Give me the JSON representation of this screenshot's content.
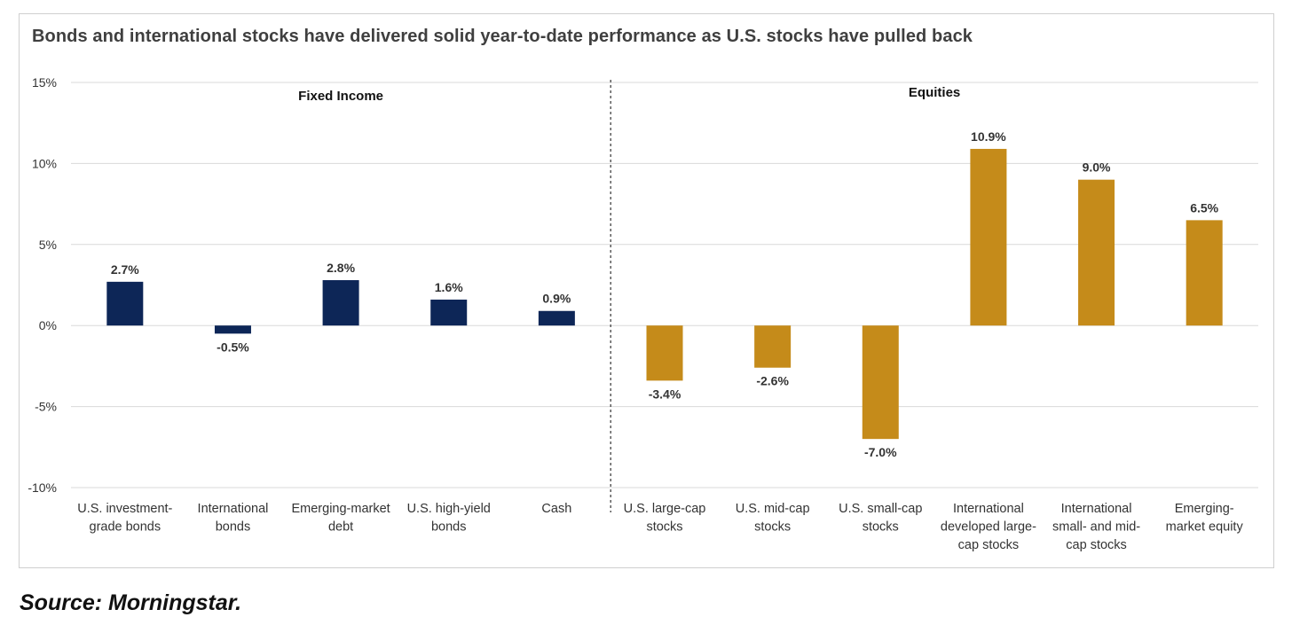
{
  "chart_data": {
    "type": "bar",
    "title": "Bonds and international  stocks have delivered solid year-to-date performance  as U.S. stocks have pulled back",
    "source": "Source: Morningstar.",
    "ylim": [
      -10,
      15
    ],
    "yticks": [
      {
        "value": 15,
        "label": "15%"
      },
      {
        "value": 10,
        "label": "10%"
      },
      {
        "value": 5,
        "label": "5%"
      },
      {
        "value": 0,
        "label": "0%"
      },
      {
        "value": -5,
        "label": "-5%"
      },
      {
        "value": -10,
        "label": "-10%"
      }
    ],
    "grid": true,
    "groups": [
      {
        "name": "Fixed Income",
        "color": "#0d2657"
      },
      {
        "name": "Equities",
        "color": "#c58b1a"
      }
    ],
    "categories": [
      {
        "label": [
          "U.S. investment-",
          "grade bonds"
        ],
        "value": 2.7,
        "value_label": "2.7%",
        "group": 0
      },
      {
        "label": [
          "International",
          "bonds"
        ],
        "value": -0.5,
        "value_label": "-0.5%",
        "group": 0
      },
      {
        "label": [
          "Emerging-market",
          "debt"
        ],
        "value": 2.8,
        "value_label": "2.8%",
        "group": 0
      },
      {
        "label": [
          "U.S. high-yield",
          "bonds"
        ],
        "value": 1.6,
        "value_label": "1.6%",
        "group": 0
      },
      {
        "label": [
          "Cash"
        ],
        "value": 0.9,
        "value_label": "0.9%",
        "group": 0
      },
      {
        "label": [
          "U.S. large-cap",
          "stocks"
        ],
        "value": -3.4,
        "value_label": "-3.4%",
        "group": 1
      },
      {
        "label": [
          "U.S. mid-cap",
          "stocks"
        ],
        "value": -2.6,
        "value_label": "-2.6%",
        "group": 1
      },
      {
        "label": [
          "U.S. small-cap",
          "stocks"
        ],
        "value": -7.0,
        "value_label": "-7.0%",
        "group": 1
      },
      {
        "label": [
          "International",
          "developed large-",
          "cap stocks"
        ],
        "value": 10.9,
        "value_label": "10.9%",
        "group": 1
      },
      {
        "label": [
          "International",
          "small- and mid-",
          "cap stocks"
        ],
        "value": 9.0,
        "value_label": "9.0%",
        "group": 1
      },
      {
        "label": [
          "Emerging-",
          "market equity"
        ],
        "value": 6.5,
        "value_label": "6.5%",
        "group": 1
      }
    ]
  }
}
